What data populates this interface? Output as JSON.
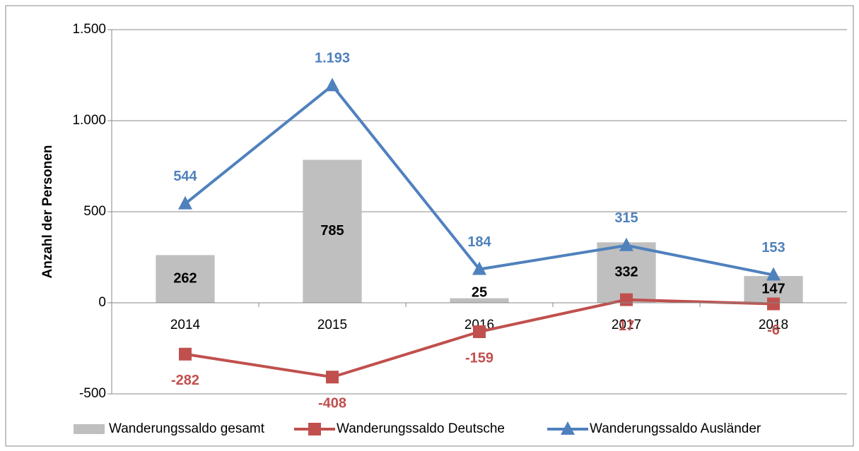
{
  "chart_data": {
    "type": "bar-line",
    "y_label": "Anzahl der Personen",
    "categories": [
      "2014",
      "2015",
      "2016",
      "2017",
      "2018"
    ],
    "series": [
      {
        "name": "Wanderungssaldo gesamt",
        "type": "bar",
        "color": "#bfbfbf",
        "values": [
          262,
          785,
          25,
          332,
          147
        ]
      },
      {
        "name": "Wanderungssaldo Deutsche",
        "type": "line",
        "marker": "square",
        "color": "#c0504d",
        "values": [
          -282,
          -408,
          -159,
          17,
          -6
        ]
      },
      {
        "name": "Wanderungssaldo Ausländer",
        "type": "line",
        "marker": "triangle",
        "color": "#4f81bd",
        "values": [
          544,
          1193,
          184,
          315,
          153
        ],
        "value_labels": [
          "544",
          "1.193",
          "184",
          "315",
          "153"
        ]
      }
    ],
    "ylim": [
      -500,
      1500
    ],
    "yticks": [
      {
        "value": -500,
        "label": "-500"
      },
      0,
      500,
      {
        "value": 1000,
        "label": "1.000"
      },
      {
        "value": 1500,
        "label": "1.500"
      }
    ],
    "grid": true,
    "legend": "bottom"
  }
}
